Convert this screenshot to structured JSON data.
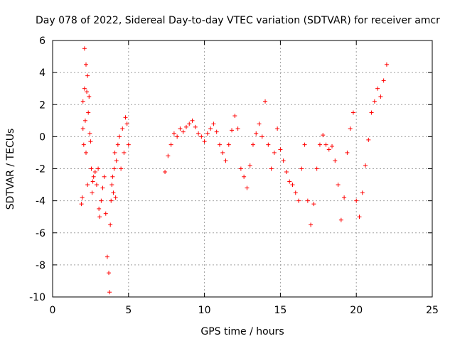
{
  "chart_data": {
    "type": "scatter",
    "title": "Day 078 of 2022, Sidereal Day-to-day VTEC variation (SDTVAR) for receiver amcr",
    "xlabel": "GPS time / hours",
    "ylabel": "SDTVAR / TECUs",
    "xlim": [
      0,
      25
    ],
    "ylim": [
      -10,
      6
    ],
    "xticks": [
      "0",
      "5",
      "10",
      "15",
      "20",
      "25"
    ],
    "yticks": [
      "6",
      "4",
      "2",
      "0",
      "-2",
      "-4",
      "-6",
      "-8",
      "-10"
    ],
    "grid": true,
    "marker": "+",
    "marker_color": "#ff0000",
    "series": [
      {
        "name": "SDTVAR",
        "x": [
          1.9,
          1.95,
          2.0,
          2.0,
          2.05,
          2.1,
          2.1,
          2.15,
          2.2,
          2.2,
          2.25,
          2.3,
          2.3,
          2.35,
          2.4,
          2.45,
          2.5,
          2.55,
          2.6,
          2.65,
          2.7,
          2.8,
          2.9,
          3.0,
          3.05,
          3.1,
          3.2,
          3.3,
          3.4,
          3.5,
          3.6,
          3.7,
          3.75,
          3.8,
          3.85,
          3.9,
          3.95,
          4.0,
          4.05,
          4.1,
          4.15,
          4.2,
          4.3,
          4.4,
          4.5,
          4.6,
          4.7,
          4.8,
          4.9,
          5.0,
          7.4,
          7.6,
          7.8,
          8.0,
          8.2,
          8.4,
          8.6,
          8.8,
          9.0,
          9.2,
          9.4,
          9.6,
          9.8,
          10.0,
          10.2,
          10.4,
          10.6,
          10.8,
          11.0,
          11.2,
          11.4,
          11.6,
          11.8,
          12.0,
          12.2,
          12.4,
          12.6,
          12.8,
          13.0,
          13.2,
          13.4,
          13.6,
          13.8,
          14.0,
          14.2,
          14.4,
          14.6,
          14.8,
          15.0,
          15.2,
          15.4,
          15.6,
          15.8,
          16.0,
          16.2,
          16.4,
          16.6,
          16.8,
          17.0,
          17.2,
          17.4,
          17.6,
          17.8,
          18.0,
          18.2,
          18.4,
          18.6,
          18.8,
          19.0,
          19.2,
          19.4,
          19.6,
          19.8,
          20.0,
          20.2,
          20.4,
          20.6,
          20.8,
          21.0,
          21.2,
          21.4,
          21.6,
          21.8,
          22.0
        ],
        "y": [
          -4.2,
          -3.8,
          2.2,
          0.5,
          -0.5,
          5.5,
          3.0,
          1.0,
          4.5,
          -1.0,
          2.8,
          3.8,
          -3.0,
          1.5,
          2.5,
          0.2,
          -0.3,
          -2.0,
          -3.5,
          -2.8,
          -2.5,
          -2.2,
          -3.0,
          -2.0,
          -4.5,
          -5.0,
          -4.0,
          -3.2,
          -2.5,
          -4.8,
          -7.5,
          -8.5,
          -9.7,
          -5.5,
          -4.0,
          -3.0,
          -2.5,
          -3.5,
          -2.0,
          -1.0,
          -3.8,
          -1.5,
          -0.5,
          0.0,
          -2.0,
          0.5,
          -1.0,
          1.2,
          0.8,
          -0.5,
          -2.2,
          -1.2,
          -0.5,
          0.2,
          0.0,
          0.5,
          0.3,
          0.6,
          0.8,
          1.0,
          0.6,
          0.2,
          0.0,
          -0.3,
          0.2,
          0.5,
          0.8,
          0.3,
          -0.5,
          -1.0,
          -1.5,
          -0.5,
          0.4,
          1.3,
          0.5,
          -2.0,
          -2.5,
          -3.2,
          -1.8,
          -0.5,
          0.2,
          0.8,
          0.0,
          2.2,
          -0.5,
          -2.0,
          -1.0,
          0.5,
          -0.8,
          -1.5,
          -2.2,
          -2.8,
          -3.0,
          -3.5,
          -4.0,
          -2.0,
          -0.5,
          -4.0,
          -5.5,
          -4.2,
          -2.0,
          -0.5,
          0.1,
          -0.5,
          -0.8,
          -0.6,
          -1.5,
          -3.0,
          -5.2,
          -3.8,
          -1.0,
          0.5,
          1.5,
          -4.0,
          -5.0,
          -3.5,
          -1.8,
          -0.2,
          1.5,
          2.2,
          3.0,
          2.5,
          3.5,
          4.5
        ]
      }
    ]
  }
}
